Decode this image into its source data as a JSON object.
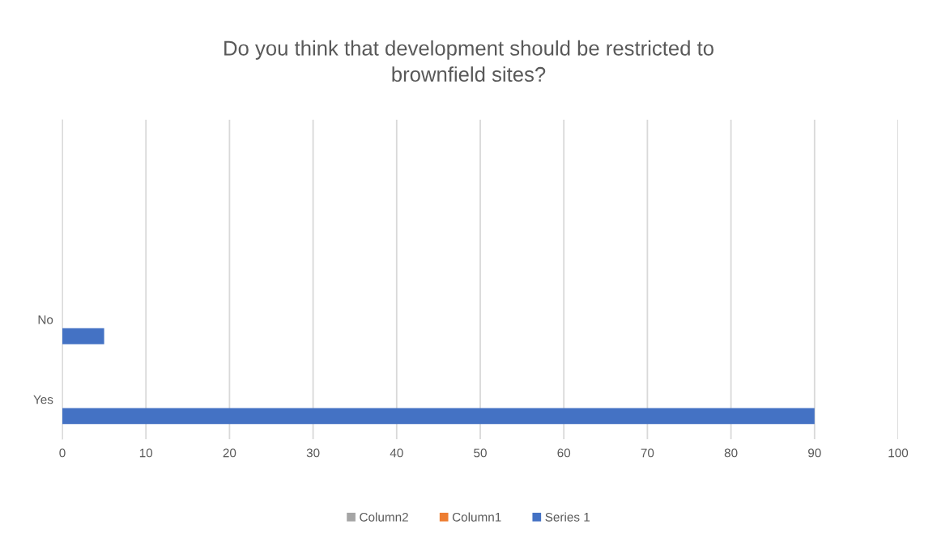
{
  "chart_data": {
    "type": "bar",
    "orientation": "horizontal",
    "title": "Do you think that development should be restricted to\nbrownfield sites?",
    "categories": [
      null,
      null,
      "No",
      "Yes"
    ],
    "series": [
      {
        "name": "Column2",
        "color": "#a5a5a5",
        "values": [
          null,
          null,
          null,
          null
        ]
      },
      {
        "name": "Column1",
        "color": "#ed7d31",
        "values": [
          null,
          null,
          null,
          null
        ]
      },
      {
        "name": "Series 1",
        "color": "#4472c4",
        "values": [
          null,
          null,
          5,
          90
        ]
      }
    ],
    "xlim": [
      0,
      100
    ],
    "xticks": [
      0,
      10,
      20,
      30,
      40,
      50,
      60,
      70,
      80,
      90,
      100
    ],
    "grid": "x",
    "legend": "bottom"
  }
}
